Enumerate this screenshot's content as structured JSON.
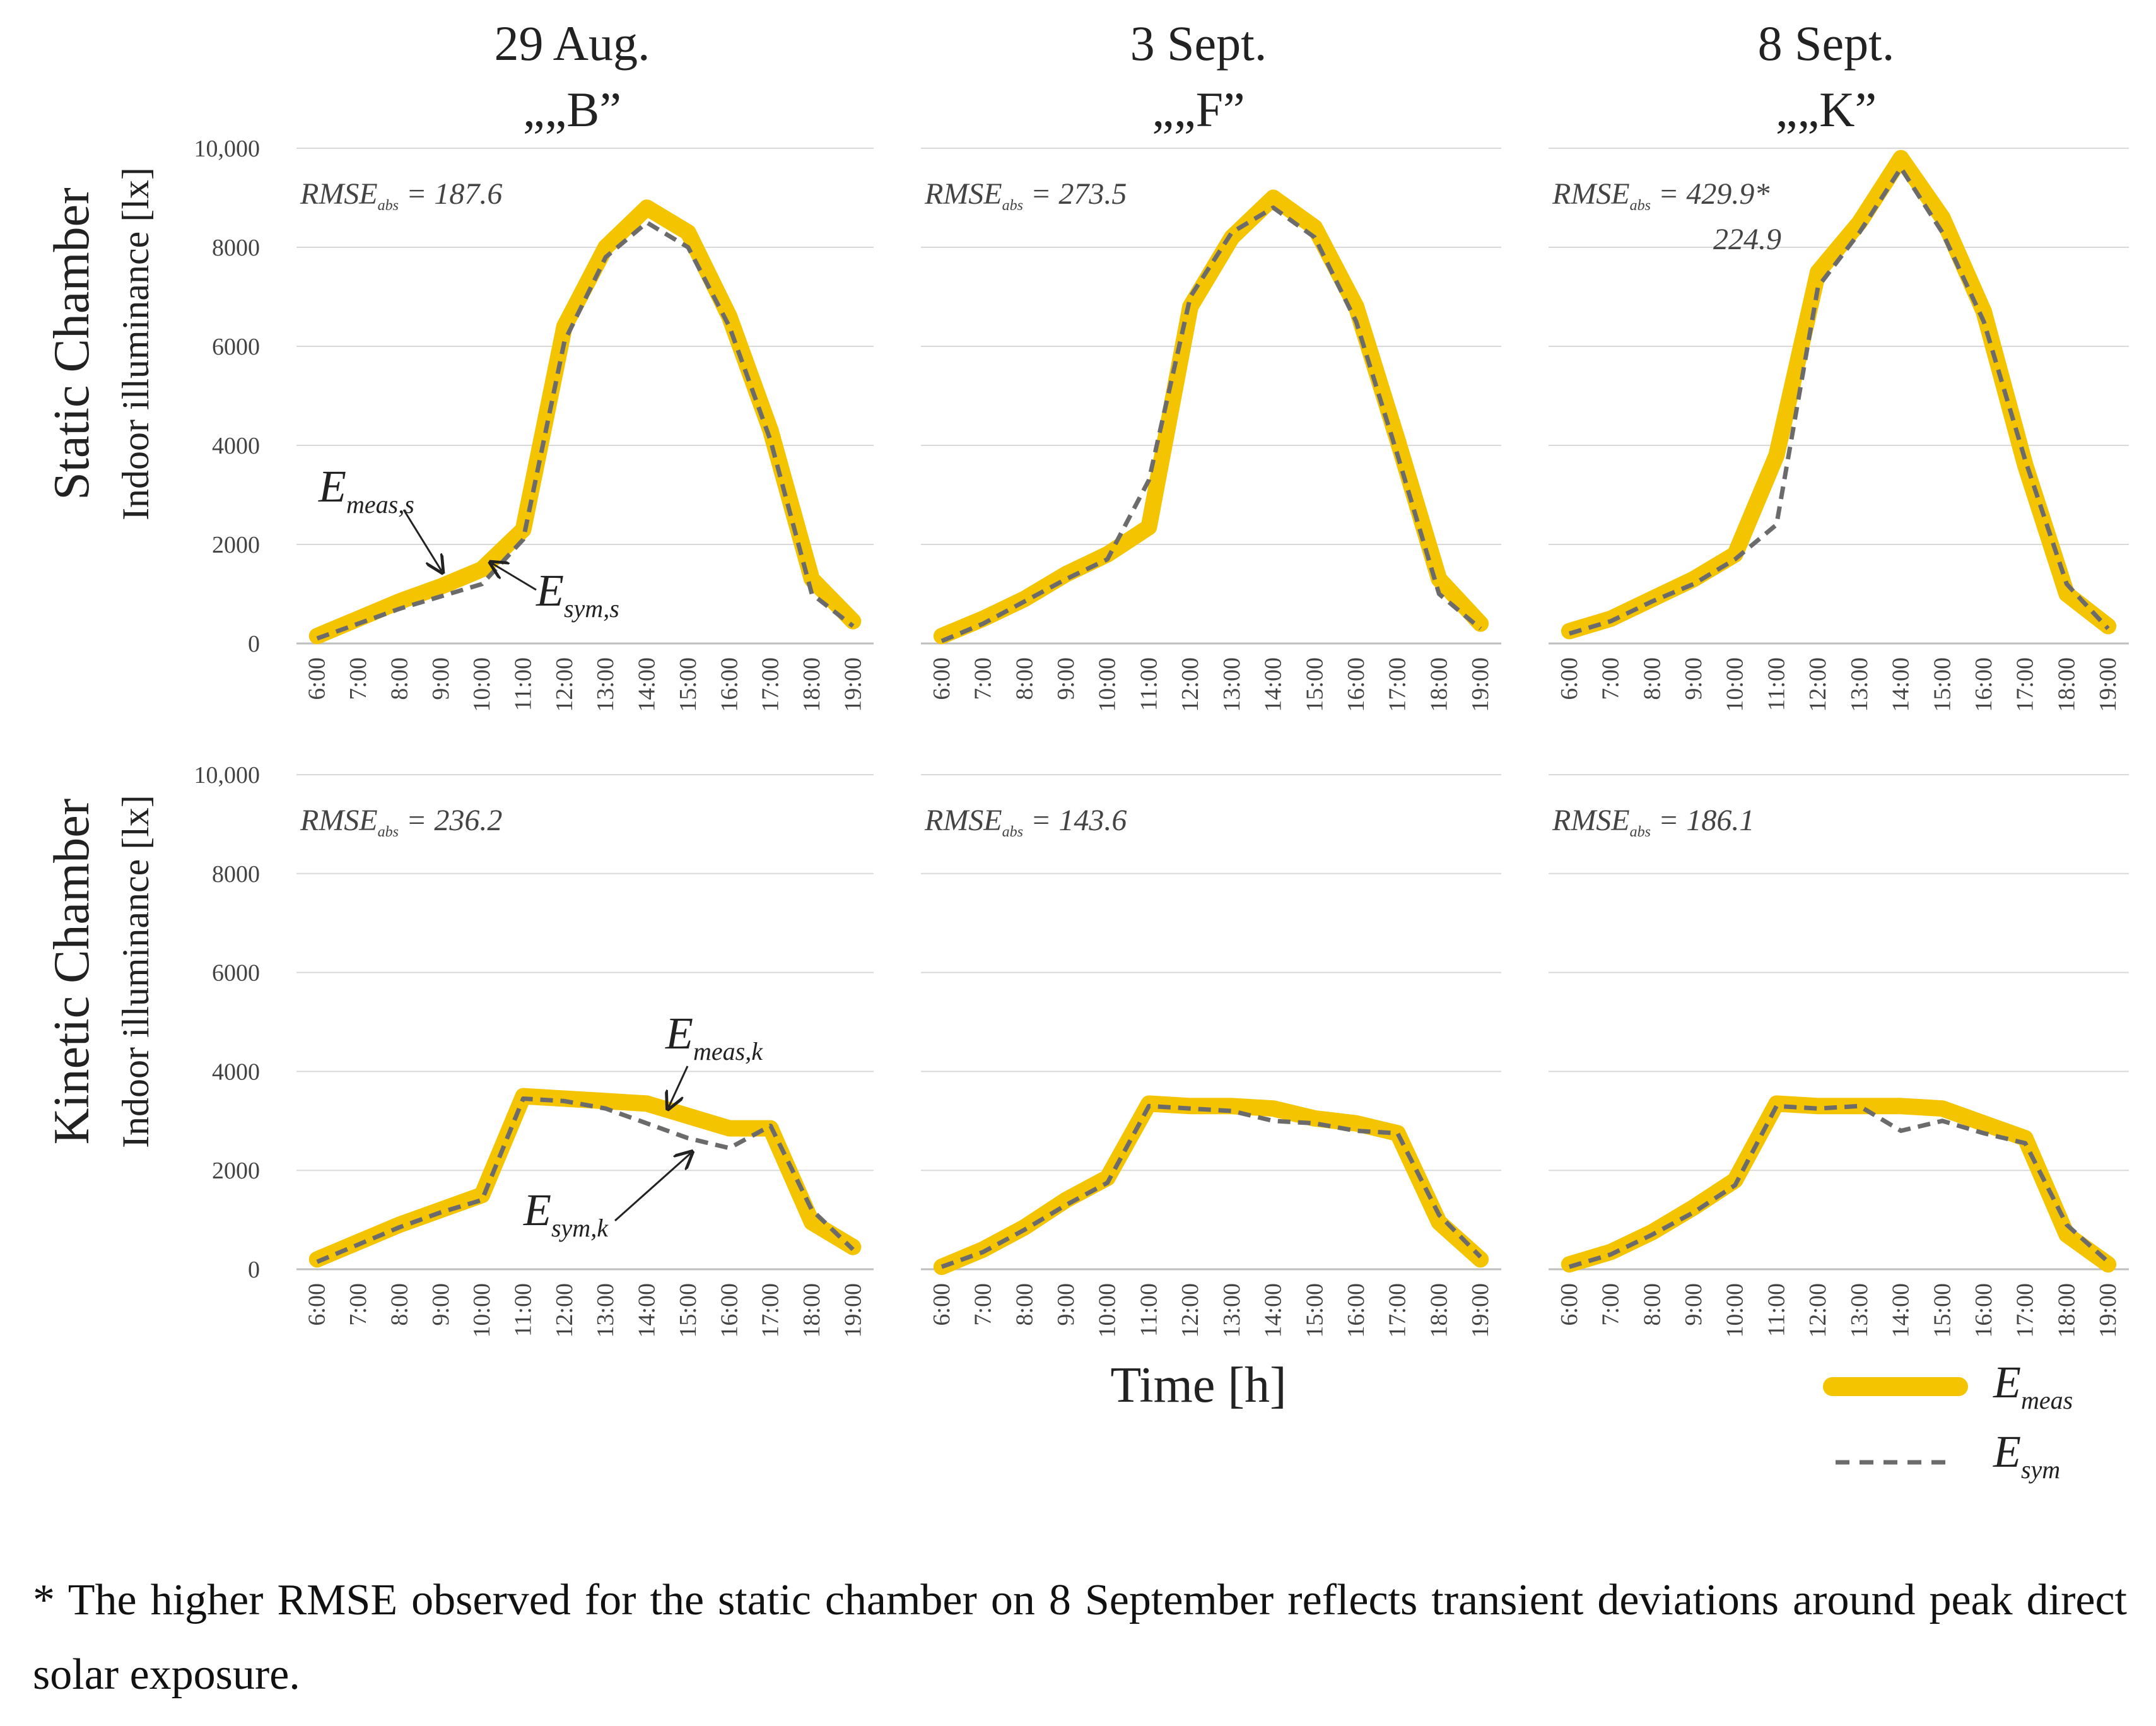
{
  "columns": [
    {
      "date": "29 Aug.",
      "label": "„„B”"
    },
    {
      "date": "3 Sept.",
      "label": "„„F”"
    },
    {
      "date": "8 Sept.",
      "label": "„„K”"
    }
  ],
  "rows": [
    {
      "chamber": "Static Chamber",
      "ylabel": "Indoor illuminance [lx]"
    },
    {
      "chamber": "Kinetic Chamber",
      "ylabel": "Indoor illuminance [lx]"
    }
  ],
  "xlabel": "Time [h]",
  "y_tick_labels": [
    "0",
    "2000",
    "4000",
    "6000",
    "8000",
    "10,000"
  ],
  "x_tick_labels": [
    "6:00",
    "7:00",
    "8:00",
    "9:00",
    "10:00",
    "11:00",
    "12:00",
    "13:00",
    "14:00",
    "15:00",
    "16:00",
    "17:00",
    "18:00",
    "19:00"
  ],
  "annotations": {
    "emeas_s": {
      "main": "E",
      "sub": "meas,s"
    },
    "esym_s": {
      "main": "E",
      "sub": "sym,s"
    },
    "emeas_k": {
      "main": "E",
      "sub": "meas,k"
    },
    "esym_k": {
      "main": "E",
      "sub": "sym,k"
    }
  },
  "legend": {
    "meas": {
      "main": "E",
      "sub": "meas"
    },
    "sym": {
      "main": "E",
      "sub": "sym"
    }
  },
  "footnote": "* The higher RMSE observed for the static chamber on 8 September reflects transient deviations around peak direct solar exposure.",
  "colors": {
    "meas": "#F5C400",
    "sym": "#6B6B6B",
    "grid": "#D9D9D9"
  },
  "chart_data": [
    {
      "type": "line",
      "title": "29 Aug. B - Static Chamber",
      "ylim": [
        0,
        10000
      ],
      "x": [
        "6:00",
        "7:00",
        "8:00",
        "9:00",
        "10:00",
        "11:00",
        "12:00",
        "13:00",
        "14:00",
        "15:00",
        "16:00",
        "17:00",
        "18:00",
        "19:00"
      ],
      "rmse": {
        "prefix": "RMSE",
        "sub": "abs",
        "value": "= 187.6"
      },
      "series": [
        {
          "name": "E_meas",
          "values": [
            150,
            500,
            850,
            1150,
            1500,
            2300,
            6400,
            8000,
            8800,
            8300,
            6600,
            4300,
            1300,
            450
          ]
        },
        {
          "name": "E_sym",
          "values": [
            100,
            400,
            700,
            950,
            1200,
            2100,
            6100,
            7800,
            8500,
            8000,
            6400,
            4100,
            1000,
            350
          ]
        }
      ]
    },
    {
      "type": "line",
      "title": "3 Sept. F - Static Chamber",
      "ylim": [
        0,
        10000
      ],
      "x": [
        "6:00",
        "7:00",
        "8:00",
        "9:00",
        "10:00",
        "11:00",
        "12:00",
        "13:00",
        "14:00",
        "15:00",
        "16:00",
        "17:00",
        "18:00",
        "19:00"
      ],
      "rmse": {
        "prefix": "RMSE",
        "sub": "abs",
        "value": "= 273.5"
      },
      "series": [
        {
          "name": "E_meas",
          "values": [
            150,
            500,
            900,
            1400,
            1800,
            2350,
            6800,
            8200,
            9000,
            8400,
            6800,
            4100,
            1300,
            400
          ]
        },
        {
          "name": "E_sym",
          "values": [
            50,
            400,
            850,
            1300,
            1700,
            3300,
            7000,
            8300,
            8800,
            8200,
            6500,
            3800,
            1000,
            300
          ]
        }
      ]
    },
    {
      "type": "line",
      "title": "8 Sept. K - Static Chamber",
      "ylim": [
        0,
        10000
      ],
      "x": [
        "6:00",
        "7:00",
        "8:00",
        "9:00",
        "10:00",
        "11:00",
        "12:00",
        "13:00",
        "14:00",
        "15:00",
        "16:00",
        "17:00",
        "18:00",
        "19:00"
      ],
      "rmse": {
        "prefix": "RMSE",
        "sub": "abs",
        "value": "= 429.9*",
        "value2": "224.9"
      },
      "series": [
        {
          "name": "E_meas",
          "values": [
            250,
            500,
            900,
            1300,
            1800,
            3800,
            7500,
            8500,
            9800,
            8600,
            6700,
            3600,
            1000,
            350
          ]
        },
        {
          "name": "E_sym",
          "values": [
            200,
            450,
            850,
            1200,
            1700,
            2400,
            7200,
            8300,
            9600,
            8300,
            6500,
            3700,
            1200,
            300
          ]
        }
      ]
    },
    {
      "type": "line",
      "title": "29 Aug. B - Kinetic Chamber",
      "ylim": [
        0,
        10000
      ],
      "x": [
        "6:00",
        "7:00",
        "8:00",
        "9:00",
        "10:00",
        "11:00",
        "12:00",
        "13:00",
        "14:00",
        "15:00",
        "16:00",
        "17:00",
        "18:00",
        "19:00"
      ],
      "rmse": {
        "prefix": "RMSE",
        "sub": "abs",
        "value": "= 236.2"
      },
      "series": [
        {
          "name": "E_meas",
          "values": [
            200,
            550,
            900,
            1200,
            1500,
            3500,
            3450,
            3400,
            3350,
            3100,
            2850,
            2850,
            950,
            450
          ]
        },
        {
          "name": "E_sym",
          "values": [
            150,
            500,
            850,
            1150,
            1400,
            3450,
            3400,
            3250,
            2950,
            2650,
            2450,
            2900,
            1200,
            400
          ]
        }
      ]
    },
    {
      "type": "line",
      "title": "3 Sept. F - Kinetic Chamber",
      "ylim": [
        0,
        10000
      ],
      "x": [
        "6:00",
        "7:00",
        "8:00",
        "9:00",
        "10:00",
        "11:00",
        "12:00",
        "13:00",
        "14:00",
        "15:00",
        "16:00",
        "17:00",
        "18:00",
        "19:00"
      ],
      "rmse": {
        "prefix": "RMSE",
        "sub": "abs",
        "value": "= 143.6"
      },
      "series": [
        {
          "name": "E_meas",
          "values": [
            50,
            400,
            850,
            1400,
            1850,
            3350,
            3300,
            3300,
            3250,
            3050,
            2950,
            2750,
            950,
            200
          ]
        },
        {
          "name": "E_sym",
          "values": [
            50,
            350,
            800,
            1300,
            1750,
            3300,
            3250,
            3200,
            3000,
            2950,
            2800,
            2750,
            1100,
            250
          ]
        }
      ]
    },
    {
      "type": "line",
      "title": "8 Sept. K - Kinetic Chamber",
      "ylim": [
        0,
        10000
      ],
      "x": [
        "6:00",
        "7:00",
        "8:00",
        "9:00",
        "10:00",
        "11:00",
        "12:00",
        "13:00",
        "14:00",
        "15:00",
        "16:00",
        "17:00",
        "18:00",
        "19:00"
      ],
      "rmse": {
        "prefix": "RMSE",
        "sub": "abs",
        "value": "= 186.1"
      },
      "series": [
        {
          "name": "E_meas",
          "values": [
            100,
            350,
            750,
            1250,
            1800,
            3350,
            3300,
            3300,
            3300,
            3250,
            2950,
            2650,
            700,
            100
          ]
        },
        {
          "name": "E_sym",
          "values": [
            50,
            300,
            700,
            1150,
            1700,
            3300,
            3250,
            3300,
            2800,
            3000,
            2750,
            2550,
            900,
            150
          ]
        }
      ]
    }
  ]
}
